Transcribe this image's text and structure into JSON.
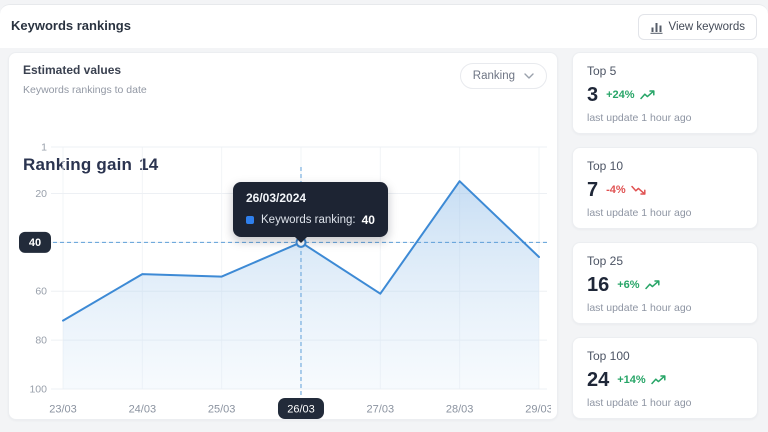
{
  "header": {
    "title": "Keywords rankings",
    "view_keywords_label": "View keywords"
  },
  "panel": {
    "title": "Estimated values",
    "subtitle": "Keywords rankings to date",
    "metric_label": "Ranking gain",
    "metric_value": "14",
    "filter_label": "Ranking"
  },
  "chart_data": {
    "type": "line",
    "title": "Keywords rankings to date",
    "x": [
      "23/03",
      "24/03",
      "25/03",
      "26/03",
      "27/03",
      "28/03",
      "29/03"
    ],
    "series": [
      {
        "name": "Keywords ranking",
        "values": [
          72,
          53,
          54,
          40,
          61,
          15,
          46
        ]
      }
    ],
    "y_ticks": [
      1,
      20,
      40,
      60,
      80,
      100
    ],
    "ylim": [
      1,
      100
    ],
    "y_inverted": true,
    "grid": true,
    "legend": false,
    "line_color": "#3d8ad5",
    "highlight": {
      "x": "26/03",
      "x_index": 3,
      "value": 40
    }
  },
  "tooltip": {
    "date": "26/03/2024",
    "label": "Keywords ranking:",
    "value": "40"
  },
  "stats": {
    "cards": [
      {
        "title": "Top 5",
        "value": "3",
        "delta": "+24%",
        "trend": "up",
        "updated": "last update 1 hour ago"
      },
      {
        "title": "Top 10",
        "value": "7",
        "delta": "-4%",
        "trend": "down",
        "updated": "last update 1 hour ago"
      },
      {
        "title": "Top 25",
        "value": "16",
        "delta": "+6%",
        "trend": "up",
        "updated": "last update 1 hour ago"
      },
      {
        "title": "Top 100",
        "value": "24",
        "delta": "+14%",
        "trend": "up",
        "updated": "last update 1 hour ago"
      }
    ]
  },
  "colors": {
    "accent_blue": "#2f80ed",
    "line_blue": "#3d8ad5",
    "positive": "#27a567",
    "negative": "#e05252",
    "badge_dark": "#222b3a",
    "tooltip_bg": "#1d2433"
  }
}
